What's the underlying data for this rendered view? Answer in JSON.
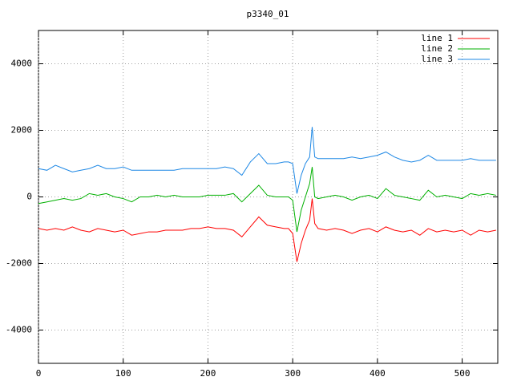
{
  "chart_data": {
    "type": "line",
    "title": "p3340_01",
    "x": [
      0,
      10,
      20,
      30,
      40,
      50,
      60,
      70,
      80,
      90,
      100,
      110,
      120,
      130,
      140,
      150,
      160,
      170,
      180,
      190,
      200,
      210,
      220,
      230,
      240,
      250,
      260,
      270,
      280,
      290,
      295,
      300,
      305,
      310,
      315,
      320,
      323,
      326,
      330,
      340,
      350,
      360,
      370,
      380,
      390,
      400,
      410,
      420,
      430,
      440,
      450,
      460,
      470,
      480,
      490,
      500,
      510,
      520,
      530,
      540
    ],
    "series": [
      {
        "name": "line 1",
        "color": "#ff0000",
        "values": [
          -950,
          -1000,
          -950,
          -1000,
          -900,
          -1000,
          -1050,
          -950,
          -1000,
          -1050,
          -1000,
          -1150,
          -1100,
          -1050,
          -1050,
          -1000,
          -1000,
          -1000,
          -950,
          -950,
          -900,
          -950,
          -950,
          -1000,
          -1200,
          -900,
          -600,
          -850,
          -900,
          -950,
          -950,
          -1100,
          -1950,
          -1400,
          -1000,
          -700,
          -50,
          -800,
          -950,
          -1000,
          -950,
          -1000,
          -1100,
          -1000,
          -950,
          -1050,
          -900,
          -1000,
          -1050,
          -1000,
          -1150,
          -950,
          -1050,
          -1000,
          -1050,
          -1000,
          -1150,
          -1000,
          -1050,
          -1000
        ]
      },
      {
        "name": "line 2",
        "color": "#00b000",
        "values": [
          -200,
          -150,
          -100,
          -50,
          -100,
          -50,
          100,
          50,
          100,
          0,
          -50,
          -150,
          0,
          0,
          50,
          0,
          50,
          0,
          0,
          0,
          50,
          50,
          50,
          100,
          -150,
          100,
          350,
          50,
          0,
          0,
          0,
          -100,
          -1050,
          -400,
          0,
          400,
          900,
          0,
          -50,
          0,
          50,
          0,
          -100,
          0,
          50,
          -50,
          250,
          50,
          0,
          -50,
          -100,
          200,
          0,
          50,
          0,
          -50,
          100,
          50,
          100,
          50
        ]
      },
      {
        "name": "line 3",
        "color": "#1e88e5",
        "values": [
          850,
          800,
          950,
          850,
          750,
          800,
          850,
          950,
          850,
          850,
          900,
          800,
          800,
          800,
          800,
          800,
          800,
          850,
          850,
          850,
          850,
          850,
          900,
          850,
          650,
          1050,
          1300,
          1000,
          1000,
          1050,
          1050,
          1000,
          100,
          650,
          1000,
          1200,
          2100,
          1200,
          1150,
          1150,
          1150,
          1150,
          1200,
          1150,
          1200,
          1250,
          1350,
          1200,
          1100,
          1050,
          1100,
          1250,
          1100,
          1100,
          1100,
          1100,
          1150,
          1100,
          1100,
          1100
        ]
      }
    ],
    "xlim": [
      0,
      542
    ],
    "ylim": [
      -5000,
      5000
    ],
    "xticks": [
      0,
      100,
      200,
      300,
      400,
      500
    ],
    "yticks": [
      -4000,
      -2000,
      0,
      2000,
      4000
    ],
    "grid": true,
    "legend": "top-right"
  }
}
